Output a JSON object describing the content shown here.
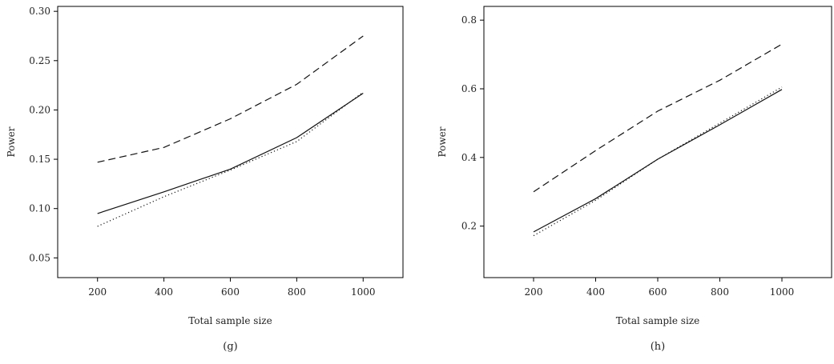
{
  "chart_data": [
    {
      "type": "line",
      "panel_label": "(g)",
      "xlabel": "Total sample size",
      "ylabel": "Power",
      "xlim": [
        80,
        1120
      ],
      "ylim": [
        0.03,
        0.305
      ],
      "xticks": [
        200,
        400,
        600,
        800,
        1000
      ],
      "yticks": [
        0.05,
        0.1,
        0.15,
        0.2,
        0.25,
        0.3
      ],
      "ytick_labels": [
        "0.05",
        "0.10",
        "0.15",
        "0.20",
        "0.25",
        "0.30"
      ],
      "x": [
        200,
        400,
        600,
        800,
        1000
      ],
      "series": [
        {
          "style": "dashed",
          "values": [
            0.147,
            0.162,
            0.191,
            0.226,
            0.275
          ]
        },
        {
          "style": "solid",
          "values": [
            0.095,
            0.117,
            0.14,
            0.172,
            0.217
          ]
        },
        {
          "style": "dotted",
          "values": [
            0.082,
            0.112,
            0.139,
            0.168,
            0.218
          ]
        }
      ]
    },
    {
      "type": "line",
      "panel_label": "(h)",
      "xlabel": "Total sample size",
      "ylabel": "Power",
      "xlim": [
        40,
        1160
      ],
      "ylim": [
        0.05,
        0.84
      ],
      "xticks": [
        200,
        400,
        600,
        800,
        1000
      ],
      "yticks": [
        0.2,
        0.4,
        0.6,
        0.8
      ],
      "ytick_labels": [
        "0.2",
        "0.4",
        "0.6",
        "0.8"
      ],
      "x": [
        200,
        400,
        600,
        800,
        1000
      ],
      "series": [
        {
          "style": "dashed",
          "values": [
            0.3,
            0.42,
            0.535,
            0.625,
            0.73
          ]
        },
        {
          "style": "solid",
          "values": [
            0.183,
            0.28,
            0.395,
            0.495,
            0.598
          ]
        },
        {
          "style": "dotted",
          "values": [
            0.172,
            0.275,
            0.395,
            0.5,
            0.605
          ]
        }
      ]
    }
  ]
}
